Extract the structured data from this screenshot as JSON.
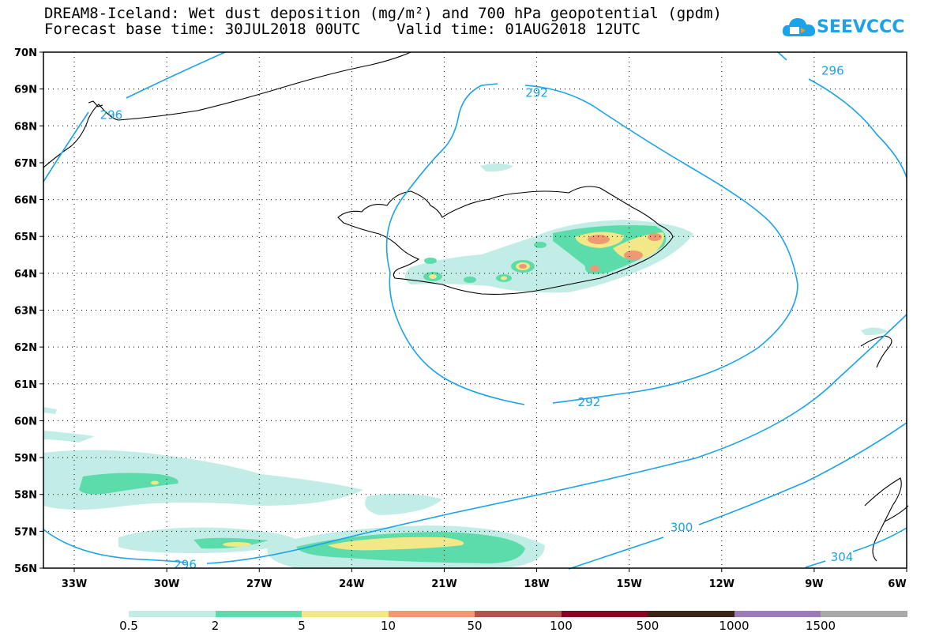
{
  "title_line1": "DREAM8-Iceland: Wet dust deposition (mg/m²) and 700 hPa geopotential (gpdm)",
  "title_line2": "Forecast base time: 30JUL2018 00UTC    Valid time: 01AUG2018 12UTC",
  "logo_text": "SEEVCCC",
  "colors": {
    "contour": "#1aa3e8",
    "coast": "#000000",
    "frame": "#000000"
  },
  "map": {
    "lon_range": [
      -34.0,
      -6.0
    ],
    "lat_range": [
      56.0,
      70.0
    ],
    "lat_labels": [
      "56N",
      "57N",
      "58N",
      "59N",
      "60N",
      "61N",
      "62N",
      "63N",
      "64N",
      "65N",
      "66N",
      "67N",
      "68N",
      "69N",
      "70N"
    ],
    "lon_labels": [
      "33W",
      "30W",
      "27W",
      "24W",
      "21W",
      "18W",
      "15W",
      "12W",
      "9W",
      "6W"
    ],
    "contour_labels": [
      {
        "text": "292",
        "lon": -18.0,
        "lat": 68.9
      },
      {
        "text": "292",
        "lon": -16.3,
        "lat": 60.5
      },
      {
        "text": "296",
        "lon": -31.8,
        "lat": 68.3
      },
      {
        "text": "296",
        "lon": -8.4,
        "lat": 69.5
      },
      {
        "text": "296",
        "lon": -29.4,
        "lat": 56.1
      },
      {
        "text": "300",
        "lon": -13.3,
        "lat": 57.1
      },
      {
        "text": "304",
        "lon": -8.1,
        "lat": 56.3
      }
    ]
  },
  "legend": {
    "labels": [
      "0.5",
      "2",
      "5",
      "10",
      "50",
      "100",
      "500",
      "1000",
      "1500"
    ],
    "colors": [
      "#c2ede6",
      "#5cdcaa",
      "#f2e887",
      "#ee9874",
      "#ae574c",
      "#8c0025",
      "#3a2415",
      "#9b7bb8",
      "#a9a9a9"
    ]
  }
}
